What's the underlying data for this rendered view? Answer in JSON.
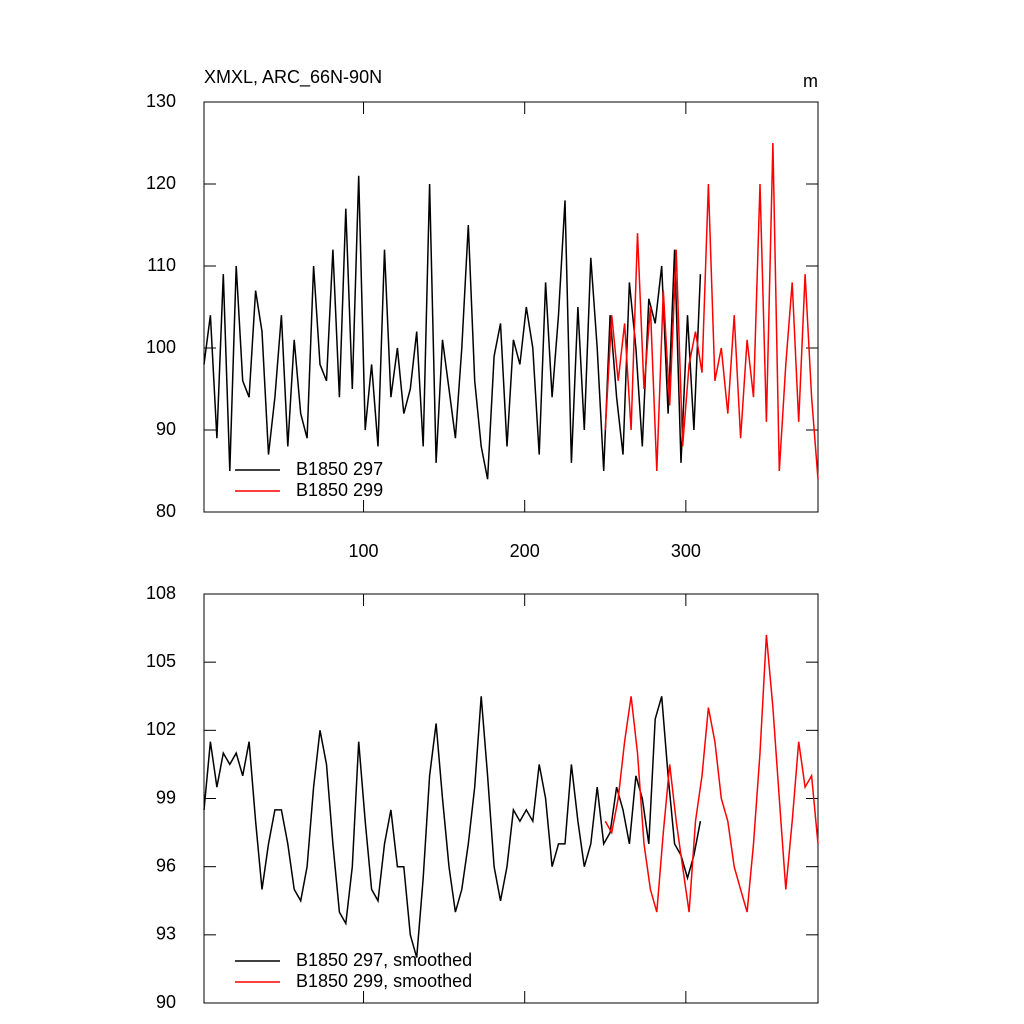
{
  "chart_data": [
    {
      "type": "line",
      "title": "XMXL, ARC_66N-90N",
      "units": "m",
      "xlim": [
        1,
        382
      ],
      "xticks": [
        100,
        200,
        300
      ],
      "ylim": [
        80,
        130
      ],
      "yticks": [
        80,
        90,
        100,
        110,
        120,
        130
      ],
      "legend": "lower left",
      "series": [
        {
          "name": "B1850 297",
          "color": "#000000",
          "x": [
            1,
            5,
            9,
            13,
            17,
            21,
            25,
            29,
            33,
            37,
            41,
            45,
            49,
            53,
            57,
            61,
            65,
            69,
            73,
            77,
            81,
            85,
            89,
            93,
            97,
            101,
            105,
            109,
            113,
            117,
            121,
            125,
            129,
            133,
            137,
            141,
            145,
            149,
            153,
            157,
            161,
            165,
            169,
            173,
            177,
            181,
            185,
            189,
            193,
            197,
            201,
            205,
            209,
            213,
            217,
            221,
            225,
            229,
            233,
            237,
            241,
            245,
            249,
            253,
            257,
            261,
            265,
            269,
            273,
            277,
            281,
            285,
            289,
            293,
            297,
            301,
            305,
            309
          ],
          "values": [
            98,
            104,
            89,
            109,
            85,
            110,
            96,
            94,
            107,
            102,
            87,
            94,
            104,
            88,
            101,
            92,
            89,
            110,
            98,
            96,
            112,
            94,
            117,
            95,
            121,
            90,
            98,
            88,
            112,
            94,
            100,
            92,
            95,
            102,
            88,
            120,
            86,
            101,
            95,
            89,
            100,
            115,
            96,
            88,
            84,
            99,
            103,
            88,
            101,
            98,
            105,
            100,
            87,
            108,
            94,
            104,
            118,
            86,
            105,
            90,
            111,
            100,
            85,
            104,
            94,
            87,
            108,
            100,
            88,
            106,
            103,
            110,
            92,
            112,
            86,
            104,
            90,
            109
          ]
        },
        {
          "name": "B1850 299",
          "color": "#ff0000",
          "x": [
            250,
            254,
            258,
            262,
            266,
            270,
            274,
            278,
            282,
            286,
            290,
            294,
            298,
            302,
            306,
            310,
            314,
            318,
            322,
            326,
            330,
            334,
            338,
            342,
            346,
            350,
            354,
            358,
            362,
            366,
            370,
            374,
            378,
            382
          ],
          "values": [
            90,
            104,
            96,
            103,
            90,
            114,
            95,
            105,
            85,
            107,
            93,
            112,
            88,
            98,
            102,
            97,
            120,
            96,
            100,
            92,
            104,
            89,
            101,
            94,
            120,
            91,
            125,
            85,
            98,
            108,
            91,
            109,
            94,
            84
          ]
        }
      ]
    },
    {
      "type": "line",
      "xlim": [
        1,
        382
      ],
      "xticks": [
        100,
        200,
        300
      ],
      "ylim": [
        90,
        108
      ],
      "yticks": [
        90,
        93,
        96,
        99,
        102,
        105,
        108
      ],
      "legend": "lower left",
      "series": [
        {
          "name": "B1850 297, smoothed",
          "color": "#000000",
          "x": [
            1,
            5,
            9,
            13,
            17,
            21,
            25,
            29,
            33,
            37,
            41,
            45,
            49,
            53,
            57,
            61,
            65,
            69,
            73,
            77,
            81,
            85,
            89,
            93,
            97,
            101,
            105,
            109,
            113,
            117,
            121,
            125,
            129,
            133,
            137,
            141,
            145,
            149,
            153,
            157,
            161,
            165,
            169,
            173,
            177,
            181,
            185,
            189,
            193,
            197,
            201,
            205,
            209,
            213,
            217,
            221,
            225,
            229,
            233,
            237,
            241,
            245,
            249,
            253,
            257,
            261,
            265,
            269,
            273,
            277,
            281,
            285,
            289,
            293,
            297,
            301,
            305,
            309
          ],
          "values": [
            98.5,
            101.5,
            99.5,
            101,
            100.5,
            101,
            100,
            101.5,
            98,
            95,
            97,
            98.5,
            98.5,
            97,
            95,
            94.5,
            96,
            99.5,
            102,
            100.5,
            97,
            94,
            93.5,
            96,
            101.5,
            98,
            95,
            94.5,
            97,
            98.5,
            96,
            96,
            93,
            92,
            95.5,
            100,
            102.3,
            99,
            96,
            94,
            95,
            97,
            99.5,
            103.5,
            100,
            96,
            94.5,
            96,
            98.5,
            98,
            98.5,
            98,
            100.5,
            99,
            96,
            97,
            97,
            100.5,
            98,
            96,
            97,
            99.5,
            97,
            97.5,
            99.5,
            98.5,
            97,
            100,
            99,
            97,
            102.5,
            103.5,
            100,
            97,
            96.5,
            95.5,
            96.5,
            98
          ]
        },
        {
          "name": "B1850 299, smoothed",
          "color": "#ff0000",
          "x": [
            250,
            254,
            258,
            262,
            266,
            270,
            274,
            278,
            282,
            286,
            290,
            294,
            298,
            302,
            306,
            310,
            314,
            318,
            322,
            326,
            330,
            334,
            338,
            342,
            346,
            350,
            354,
            358,
            362,
            366,
            370,
            374,
            378,
            382
          ],
          "values": [
            98,
            97.5,
            99,
            101.5,
            103.5,
            101,
            97,
            95,
            94,
            97.5,
            100.5,
            98,
            96,
            94,
            98,
            100,
            103,
            101.5,
            99,
            98,
            96,
            95,
            94,
            97,
            101,
            106.2,
            103,
            99,
            95,
            98,
            101.5,
            99.5,
            100,
            97
          ]
        }
      ]
    }
  ]
}
